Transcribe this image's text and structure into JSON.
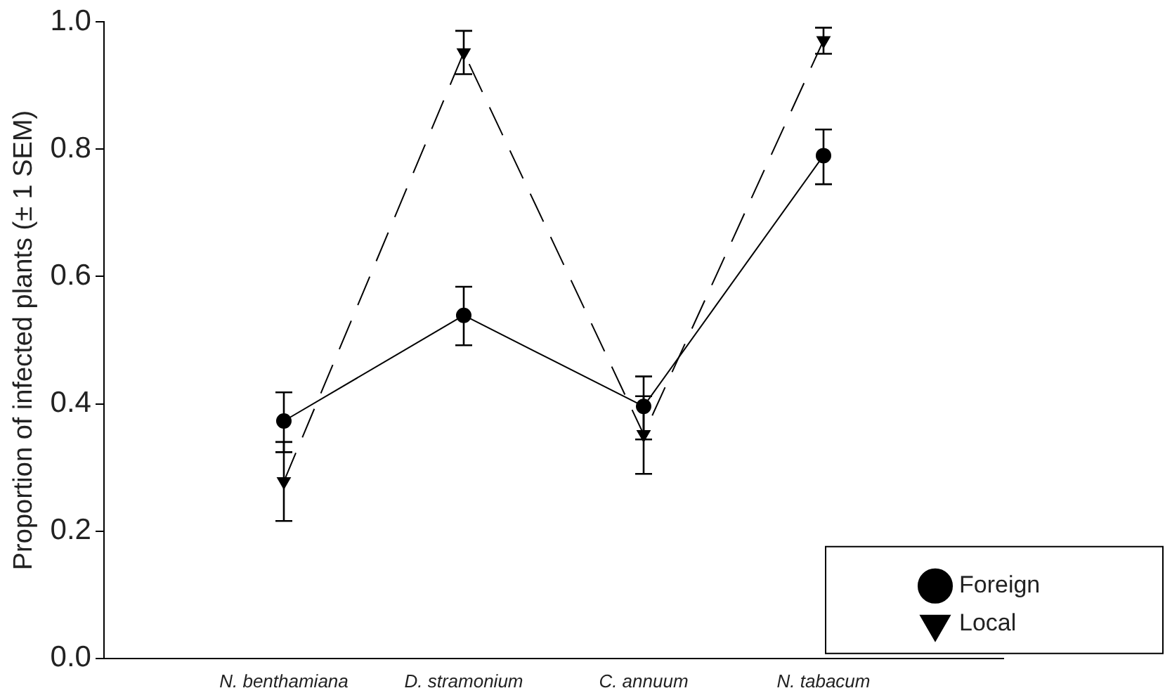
{
  "chart_data": {
    "type": "line",
    "ylabel": "Proportion of infected plants (± 1 SEM)",
    "categories": [
      "N. benthamiana",
      "D. stramonium",
      "C. annuum",
      "N. tabacum"
    ],
    "series": [
      {
        "name": "Foreign",
        "color": "#000000",
        "marker": "circle",
        "line_style": "solid",
        "values": [
          0.373,
          0.539,
          0.396,
          0.79
        ],
        "errors": [
          [
            0.324,
            0.418
          ],
          [
            0.492,
            0.584
          ],
          [
            0.344,
            0.443
          ],
          [
            0.745,
            0.831
          ]
        ]
      },
      {
        "name": "Local",
        "color": "#000000",
        "marker": "triangle",
        "line_style": "dashed",
        "values": [
          0.278,
          0.952,
          0.352,
          0.971
        ],
        "errors": [
          [
            0.216,
            0.34
          ],
          [
            0.918,
            0.986
          ],
          [
            0.29,
            0.412
          ],
          [
            0.95,
            0.991
          ]
        ]
      }
    ],
    "ylim": [
      0,
      1
    ],
    "yticks": [
      {
        "value": 0,
        "label": "0.0"
      },
      {
        "value": 0.2,
        "label": "0.2"
      },
      {
        "value": 0.4,
        "label": "0.4"
      },
      {
        "value": 0.6,
        "label": "0.6"
      },
      {
        "value": 0.8,
        "label": "0.8"
      },
      {
        "value": 1,
        "label": "1.0"
      }
    ],
    "grid": false,
    "legend": "bottom right"
  }
}
